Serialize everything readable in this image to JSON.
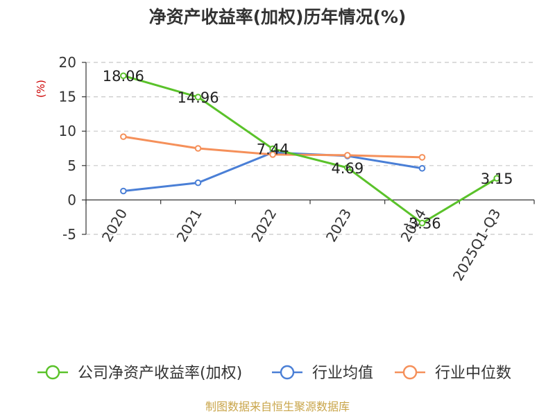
{
  "chart_data": {
    "type": "line",
    "title": "净资产收益率(加权)历年情况(%)",
    "ylabel": "(%)",
    "xlabel": "",
    "categories": [
      "2020",
      "2021",
      "2022",
      "2023",
      "2024",
      "2025Q1-Q3"
    ],
    "ylim": [
      -5,
      20
    ],
    "yticks": [
      20,
      15,
      10,
      5,
      0,
      -5
    ],
    "ytick_labels": [
      "20",
      "15",
      "10",
      "5",
      "0",
      "-5"
    ],
    "grid": true,
    "legend_position": "bottom",
    "series": [
      {
        "name": "公司净资产收益率(加权)",
        "color": "#5ac22a",
        "values": [
          18.06,
          14.96,
          7.44,
          4.69,
          -3.36,
          3.15
        ],
        "labels": [
          "18.06",
          "14.96",
          "7.44",
          "4.69",
          "-3.36",
          "3.15"
        ]
      },
      {
        "name": "行业均值",
        "color": "#4a7fd6",
        "values": [
          1.3,
          2.5,
          6.9,
          6.4,
          4.6,
          null
        ]
      },
      {
        "name": "行业中位数",
        "color": "#f5905a",
        "values": [
          9.2,
          7.5,
          6.6,
          6.5,
          6.2,
          null
        ]
      }
    ]
  },
  "source": "制图数据来自恒生聚源数据库"
}
